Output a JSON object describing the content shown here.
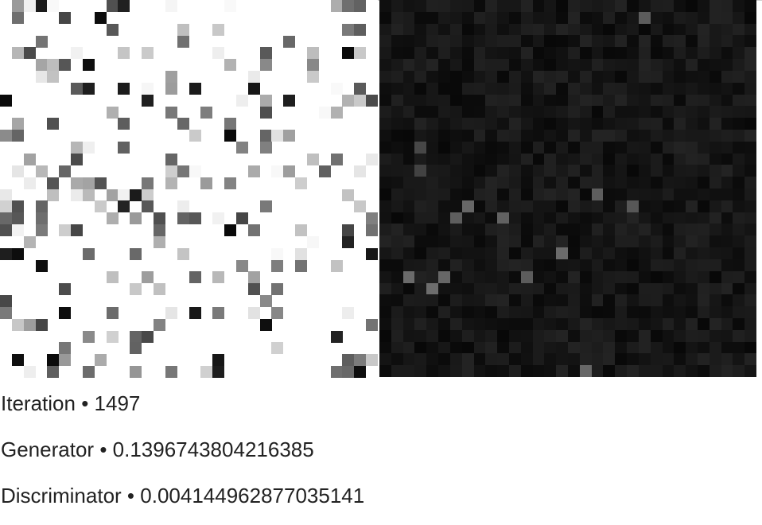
{
  "stats": {
    "iteration_label": "Iteration",
    "iteration_value": "1497",
    "generator_label": "Generator",
    "generator_value": "0.1396743804216385",
    "discriminator_label": "Discriminator",
    "discriminator_value": "0.004144962877035141",
    "separator": "•"
  },
  "images": {
    "real_sample": "handwritten-digit-grid",
    "generated_sample": "noise-grid"
  }
}
